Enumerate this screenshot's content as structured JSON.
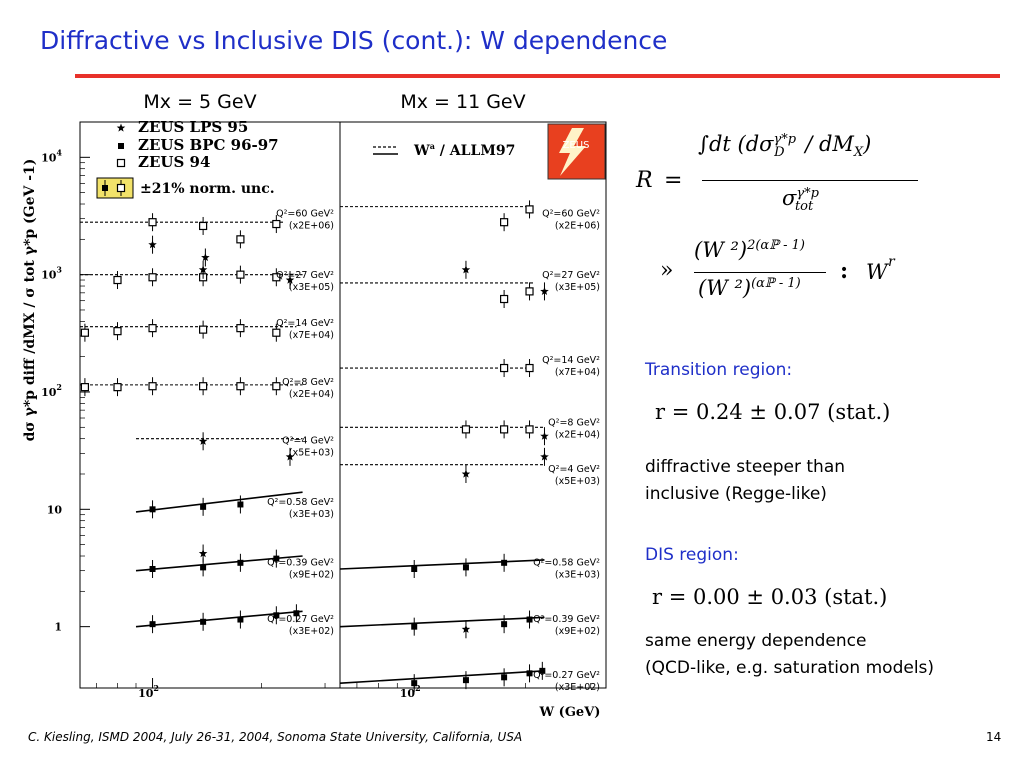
{
  "slide": {
    "title": "Diffractive vs Inclusive DIS (cont.): W dependence",
    "footer": "C. Kiesling, ISMD 2004, July 26-31, 2004, Sonoma State University, California, USA",
    "page_number": "14"
  },
  "formulas": {
    "R_lhs": "R",
    "equals": "=",
    "numerator": "∫dt (dσ",
    "num_sup": "γ*p",
    "num_sub": "D",
    "num_tail": "/ dM",
    "num_tail_sub": "X",
    "num_close": ")",
    "denominator": "σ",
    "den_sup": "γ*p",
    "den_sub": "tot",
    "approx": "»",
    "ratio_num": "(W ²)",
    "ratio_num_exp": "2(αℙ - 1)",
    "ratio_den": "(W ²)",
    "ratio_den_exp": "(αℙ - 1)",
    "propto": ":",
    "W_r": "W",
    "W_r_exp": "r"
  },
  "right_text": {
    "transition_label": "Transition region:",
    "transition_eq": "r = 0.24 ± 0.07 (stat.)",
    "transition_desc_1": "diffractive steeper than",
    "transition_desc_2": "inclusive (Regge-like)",
    "dis_label": "DIS region:",
    "dis_eq": "r = 0.00 ± 0.03 (stat.)",
    "dis_desc_1": "same energy dependence",
    "dis_desc_2": "(QCD-like, e.g. saturation models)"
  },
  "chart_data": {
    "type": "scatter",
    "y_axis_label": "dσ γ*p diff /dMX / σ tot γ*p (GeV -1)",
    "x_axis_label": "W (GeV)",
    "log_y": true,
    "ylim": [
      0.3,
      20000
    ],
    "y_ticks": [
      {
        "value": 1,
        "label": "1"
      },
      {
        "value": 10,
        "label": "10"
      },
      {
        "value": 100,
        "label": "10",
        "exp": "2"
      },
      {
        "value": 1000,
        "label": "10",
        "exp": "3"
      },
      {
        "value": 10000,
        "label": "10",
        "exp": "4"
      }
    ],
    "colors": {
      "frame": "#000000",
      "points": "#000000",
      "zeus_logo": "#e8401f",
      "norm_box": "#f2e26a"
    },
    "legend": {
      "entries": [
        {
          "marker": "star",
          "label": "ZEUS LPS 95"
        },
        {
          "marker": "filled-square",
          "label": "ZEUS BPC 96-97"
        },
        {
          "marker": "open-square",
          "label": "ZEUS 94"
        }
      ],
      "norm_label": "±21% norm. unc.",
      "fit_label": "W",
      "fit_label_exp": "a",
      "fit_label_tail": "/ ALLM97",
      "logo_text": "ZEUS"
    },
    "panels": [
      {
        "title": "Mx = 5 GeV",
        "xlim": [
          63,
          330
        ],
        "x_tick": {
          "value": 100,
          "label": "10",
          "exp": "2"
        },
        "groups": [
          {
            "label_1": "Q²=60 GeV²",
            "label_2": "(x2E+06)",
            "label_y": 3000,
            "fit": "dashed",
            "fit_x": [
              63,
              230
            ],
            "fit_y": [
              2800,
              2800
            ],
            "points": [
              {
                "m": "open-square",
                "x": 100,
                "y": 2800
              },
              {
                "m": "open-square",
                "x": 138,
                "y": 2600
              },
              {
                "m": "open-square",
                "x": 175,
                "y": 2000
              },
              {
                "m": "open-square",
                "x": 220,
                "y": 2700
              },
              {
                "m": "star",
                "x": 100,
                "y": 1800
              },
              {
                "m": "star",
                "x": 140,
                "y": 1400
              }
            ]
          },
          {
            "label_1": "Q²=27 GeV²",
            "label_2": "(x3E+05)",
            "label_y": 900,
            "fit": "dashed",
            "fit_x": [
              63,
              260
            ],
            "fit_y": [
              1000,
              1000
            ],
            "points": [
              {
                "m": "open-square",
                "x": 80,
                "y": 900
              },
              {
                "m": "open-square",
                "x": 100,
                "y": 950
              },
              {
                "m": "open-square",
                "x": 138,
                "y": 950
              },
              {
                "m": "open-square",
                "x": 175,
                "y": 1000
              },
              {
                "m": "open-square",
                "x": 220,
                "y": 950
              },
              {
                "m": "star",
                "x": 138,
                "y": 1100
              },
              {
                "m": "star",
                "x": 240,
                "y": 900
              }
            ]
          },
          {
            "label_1": "Q²=14 GeV²",
            "label_2": "(x7E+04)",
            "label_y": 350,
            "fit": "dashed",
            "fit_x": [
              63,
              250
            ],
            "fit_y": [
              360,
              360
            ],
            "points": [
              {
                "m": "open-square",
                "x": 65,
                "y": 320
              },
              {
                "m": "open-square",
                "x": 80,
                "y": 330
              },
              {
                "m": "open-square",
                "x": 100,
                "y": 350
              },
              {
                "m": "open-square",
                "x": 138,
                "y": 340
              },
              {
                "m": "open-square",
                "x": 175,
                "y": 350
              },
              {
                "m": "open-square",
                "x": 220,
                "y": 320
              }
            ]
          },
          {
            "label_1": "Q²=8 GeV²",
            "label_2": "(x2E+04)",
            "label_y": 110,
            "fit": "dashed",
            "fit_x": [
              63,
              260
            ],
            "fit_y": [
              115,
              115
            ],
            "points": [
              {
                "m": "open-square",
                "x": 65,
                "y": 110
              },
              {
                "m": "open-square",
                "x": 80,
                "y": 110
              },
              {
                "m": "open-square",
                "x": 100,
                "y": 112
              },
              {
                "m": "open-square",
                "x": 138,
                "y": 112
              },
              {
                "m": "open-square",
                "x": 175,
                "y": 112
              },
              {
                "m": "open-square",
                "x": 220,
                "y": 112
              }
            ]
          },
          {
            "label_1": "Q²=4 GeV²",
            "label_2": "(x5E+03)",
            "label_y": 35,
            "fit": "dashed",
            "fit_x": [
              90,
              260
            ],
            "fit_y": [
              40,
              40
            ],
            "points": [
              {
                "m": "star",
                "x": 138,
                "y": 38
              },
              {
                "m": "star",
                "x": 240,
                "y": 28
              }
            ]
          },
          {
            "label_1": "Q²=0.58 GeV²",
            "label_2": "(x3E+03)",
            "label_y": 10.5,
            "fit": "solid",
            "fit_x": [
              90,
              260
            ],
            "fit_y": [
              9.5,
              14
            ],
            "points": [
              {
                "m": "filled-square",
                "x": 100,
                "y": 10
              },
              {
                "m": "filled-square",
                "x": 138,
                "y": 10.5
              },
              {
                "m": "filled-square",
                "x": 175,
                "y": 11
              }
            ]
          },
          {
            "label_1": "Q²=0.39 GeV²",
            "label_2": "(x9E+02)",
            "label_y": 3.2,
            "fit": "solid",
            "fit_x": [
              90,
              260
            ],
            "fit_y": [
              3,
              4
            ],
            "points": [
              {
                "m": "filled-square",
                "x": 100,
                "y": 3.1
              },
              {
                "m": "filled-square",
                "x": 138,
                "y": 3.2
              },
              {
                "m": "filled-square",
                "x": 175,
                "y": 3.5
              },
              {
                "m": "filled-square",
                "x": 220,
                "y": 3.8
              },
              {
                "m": "star",
                "x": 138,
                "y": 4.2
              }
            ]
          },
          {
            "label_1": "Q²=0.27 GeV²",
            "label_2": "(x3E+02)",
            "label_y": 1.05,
            "fit": "solid",
            "fit_x": [
              90,
              260
            ],
            "fit_y": [
              1,
              1.35
            ],
            "points": [
              {
                "m": "filled-square",
                "x": 100,
                "y": 1.05
              },
              {
                "m": "filled-square",
                "x": 138,
                "y": 1.1
              },
              {
                "m": "filled-square",
                "x": 175,
                "y": 1.15
              },
              {
                "m": "filled-square",
                "x": 220,
                "y": 1.25
              },
              {
                "m": "filled-square",
                "x": 250,
                "y": 1.3
              }
            ]
          }
        ]
      },
      {
        "title": "Mx = 11 GeV",
        "xlim": [
          63,
          330
        ],
        "x_tick": {
          "value": 100,
          "label": "10",
          "exp": "2"
        },
        "groups": [
          {
            "label_1": "Q²=60 GeV²",
            "label_2": "(x2E+06)",
            "label_y": 3000,
            "fit": "dashed",
            "fit_x": [
              63,
              210
            ],
            "fit_y": [
              3800,
              3800
            ],
            "points": [
              {
                "m": "open-square",
                "x": 175,
                "y": 2800
              },
              {
                "m": "open-square",
                "x": 205,
                "y": 3600
              }
            ]
          },
          {
            "label_1": "Q²=27 GeV²",
            "label_2": "(x3E+05)",
            "label_y": 900,
            "fit": "dashed",
            "fit_x": [
              63,
              210
            ],
            "fit_y": [
              850,
              850
            ],
            "points": [
              {
                "m": "star",
                "x": 138,
                "y": 1100
              },
              {
                "m": "open-square",
                "x": 175,
                "y": 620
              },
              {
                "m": "open-square",
                "x": 205,
                "y": 720
              },
              {
                "m": "star",
                "x": 225,
                "y": 720
              }
            ]
          },
          {
            "label_1": "Q²=14 GeV²",
            "label_2": "(x7E+04)",
            "label_y": 170,
            "fit": "dashed",
            "fit_x": [
              63,
              210
            ],
            "fit_y": [
              160,
              160
            ],
            "points": [
              {
                "m": "open-square",
                "x": 175,
                "y": 160
              },
              {
                "m": "open-square",
                "x": 205,
                "y": 160
              }
            ]
          },
          {
            "label_1": "Q²=8 GeV²",
            "label_2": "(x2E+04)",
            "label_y": 50,
            "fit": "dashed",
            "fit_x": [
              63,
              225
            ],
            "fit_y": [
              50,
              50
            ],
            "points": [
              {
                "m": "open-square",
                "x": 138,
                "y": 48
              },
              {
                "m": "open-square",
                "x": 175,
                "y": 48
              },
              {
                "m": "open-square",
                "x": 205,
                "y": 48
              },
              {
                "m": "star",
                "x": 225,
                "y": 42
              }
            ]
          },
          {
            "label_1": "Q²=4 GeV²",
            "label_2": "(x5E+03)",
            "label_y": 20,
            "fit": "dashed",
            "fit_x": [
              63,
              225
            ],
            "fit_y": [
              24,
              24
            ],
            "points": [
              {
                "m": "star",
                "x": 138,
                "y": 20
              },
              {
                "m": "star",
                "x": 225,
                "y": 28
              }
            ]
          },
          {
            "label_1": "Q²=0.58 GeV²",
            "label_2": "(x3E+03)",
            "label_y": 3.2,
            "fit": "solid",
            "fit_x": [
              63,
              225
            ],
            "fit_y": [
              3.1,
              3.7
            ],
            "points": [
              {
                "m": "filled-square",
                "x": 100,
                "y": 3.1
              },
              {
                "m": "filled-square",
                "x": 138,
                "y": 3.2
              },
              {
                "m": "filled-square",
                "x": 175,
                "y": 3.5
              }
            ]
          },
          {
            "label_1": "Q²=0.39 GeV²",
            "label_2": "(x9E+02)",
            "label_y": 1.05,
            "fit": "solid",
            "fit_x": [
              63,
              225
            ],
            "fit_y": [
              1,
              1.2
            ],
            "points": [
              {
                "m": "filled-square",
                "x": 100,
                "y": 1
              },
              {
                "m": "star",
                "x": 138,
                "y": 0.95
              },
              {
                "m": "filled-square",
                "x": 175,
                "y": 1.05
              },
              {
                "m": "filled-square",
                "x": 205,
                "y": 1.15
              }
            ]
          },
          {
            "label_1": "Q²=0.27 GeV²",
            "label_2": "(x3E+02)",
            "label_y": 0.35,
            "fit": "solid",
            "fit_x": [
              63,
              225
            ],
            "fit_y": [
              0.33,
              0.42
            ],
            "points": [
              {
                "m": "filled-square",
                "x": 100,
                "y": 0.33
              },
              {
                "m": "filled-square",
                "x": 138,
                "y": 0.35
              },
              {
                "m": "filled-square",
                "x": 175,
                "y": 0.37
              },
              {
                "m": "filled-square",
                "x": 205,
                "y": 0.4
              },
              {
                "m": "filled-square",
                "x": 222,
                "y": 0.42
              }
            ]
          }
        ]
      }
    ]
  }
}
